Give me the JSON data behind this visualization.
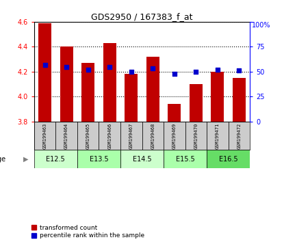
{
  "title": "GDS2950 / 167383_f_at",
  "samples": [
    "GSM199463",
    "GSM199464",
    "GSM199465",
    "GSM199466",
    "GSM199467",
    "GSM199468",
    "GSM199469",
    "GSM199470",
    "GSM199471",
    "GSM199472"
  ],
  "transformed_count": [
    4.59,
    4.4,
    4.27,
    4.43,
    4.18,
    4.32,
    3.94,
    4.1,
    4.2,
    4.15
  ],
  "percentile_rank": [
    57,
    55,
    52,
    55,
    50,
    53,
    48,
    50,
    52,
    51
  ],
  "ylim": [
    3.8,
    4.6
  ],
  "yticks_left": [
    3.8,
    4.0,
    4.2,
    4.4,
    4.6
  ],
  "yticks_right": [
    0,
    25,
    50,
    75,
    100
  ],
  "bar_color": "#c00000",
  "dot_color": "#0000cc",
  "age_groups": [
    {
      "label": "E12.5",
      "cols": [
        0,
        1
      ],
      "color": "#ccffcc"
    },
    {
      "label": "E13.5",
      "cols": [
        2,
        3
      ],
      "color": "#aaffaa"
    },
    {
      "label": "E14.5",
      "cols": [
        4,
        5
      ],
      "color": "#ccffcc"
    },
    {
      "label": "E15.5",
      "cols": [
        6,
        7
      ],
      "color": "#aaffaa"
    },
    {
      "label": "E16.5",
      "cols": [
        8,
        9
      ],
      "color": "#66dd66"
    }
  ],
  "sample_bg_color": "#cccccc",
  "legend_bar_label": "transformed count",
  "legend_dot_label": "percentile rank within the sample"
}
